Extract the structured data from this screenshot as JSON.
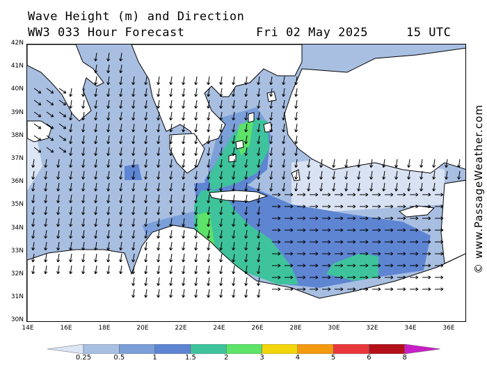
{
  "header": {
    "title": "Wave Height (m) and Direction",
    "model": "WW3 033 Hour Forecast",
    "date": "Fri 02 May 2025",
    "time": "15 UTC"
  },
  "watermark": "© www.PassageWeather.com",
  "axes": {
    "lat_labels": [
      "42N",
      "41N",
      "40N",
      "39N",
      "38N",
      "37N",
      "36N",
      "35N",
      "34N",
      "33N",
      "32N",
      "31N",
      "30N"
    ],
    "lon_labels": [
      "14E",
      "16E",
      "18E",
      "20E",
      "22E",
      "24E",
      "26E",
      "28E",
      "30E",
      "32E",
      "34E",
      "36E"
    ]
  },
  "legend": {
    "labels": [
      "0.25",
      "0.5",
      "1",
      "1.5",
      "2",
      "3",
      "4",
      "5",
      "6",
      "8"
    ],
    "colors": [
      "#dde6f5",
      "#a8bfe2",
      "#7b9fd9",
      "#5e85d2",
      "#3fc39c",
      "#5de26a",
      "#f2d50a",
      "#f39a10",
      "#e8383c",
      "#b4101a",
      "#c81ec8"
    ]
  },
  "map": {
    "sea_color_base": "#a8bfe2",
    "land_color": "#ffffff",
    "arrow_color": "#000000"
  }
}
